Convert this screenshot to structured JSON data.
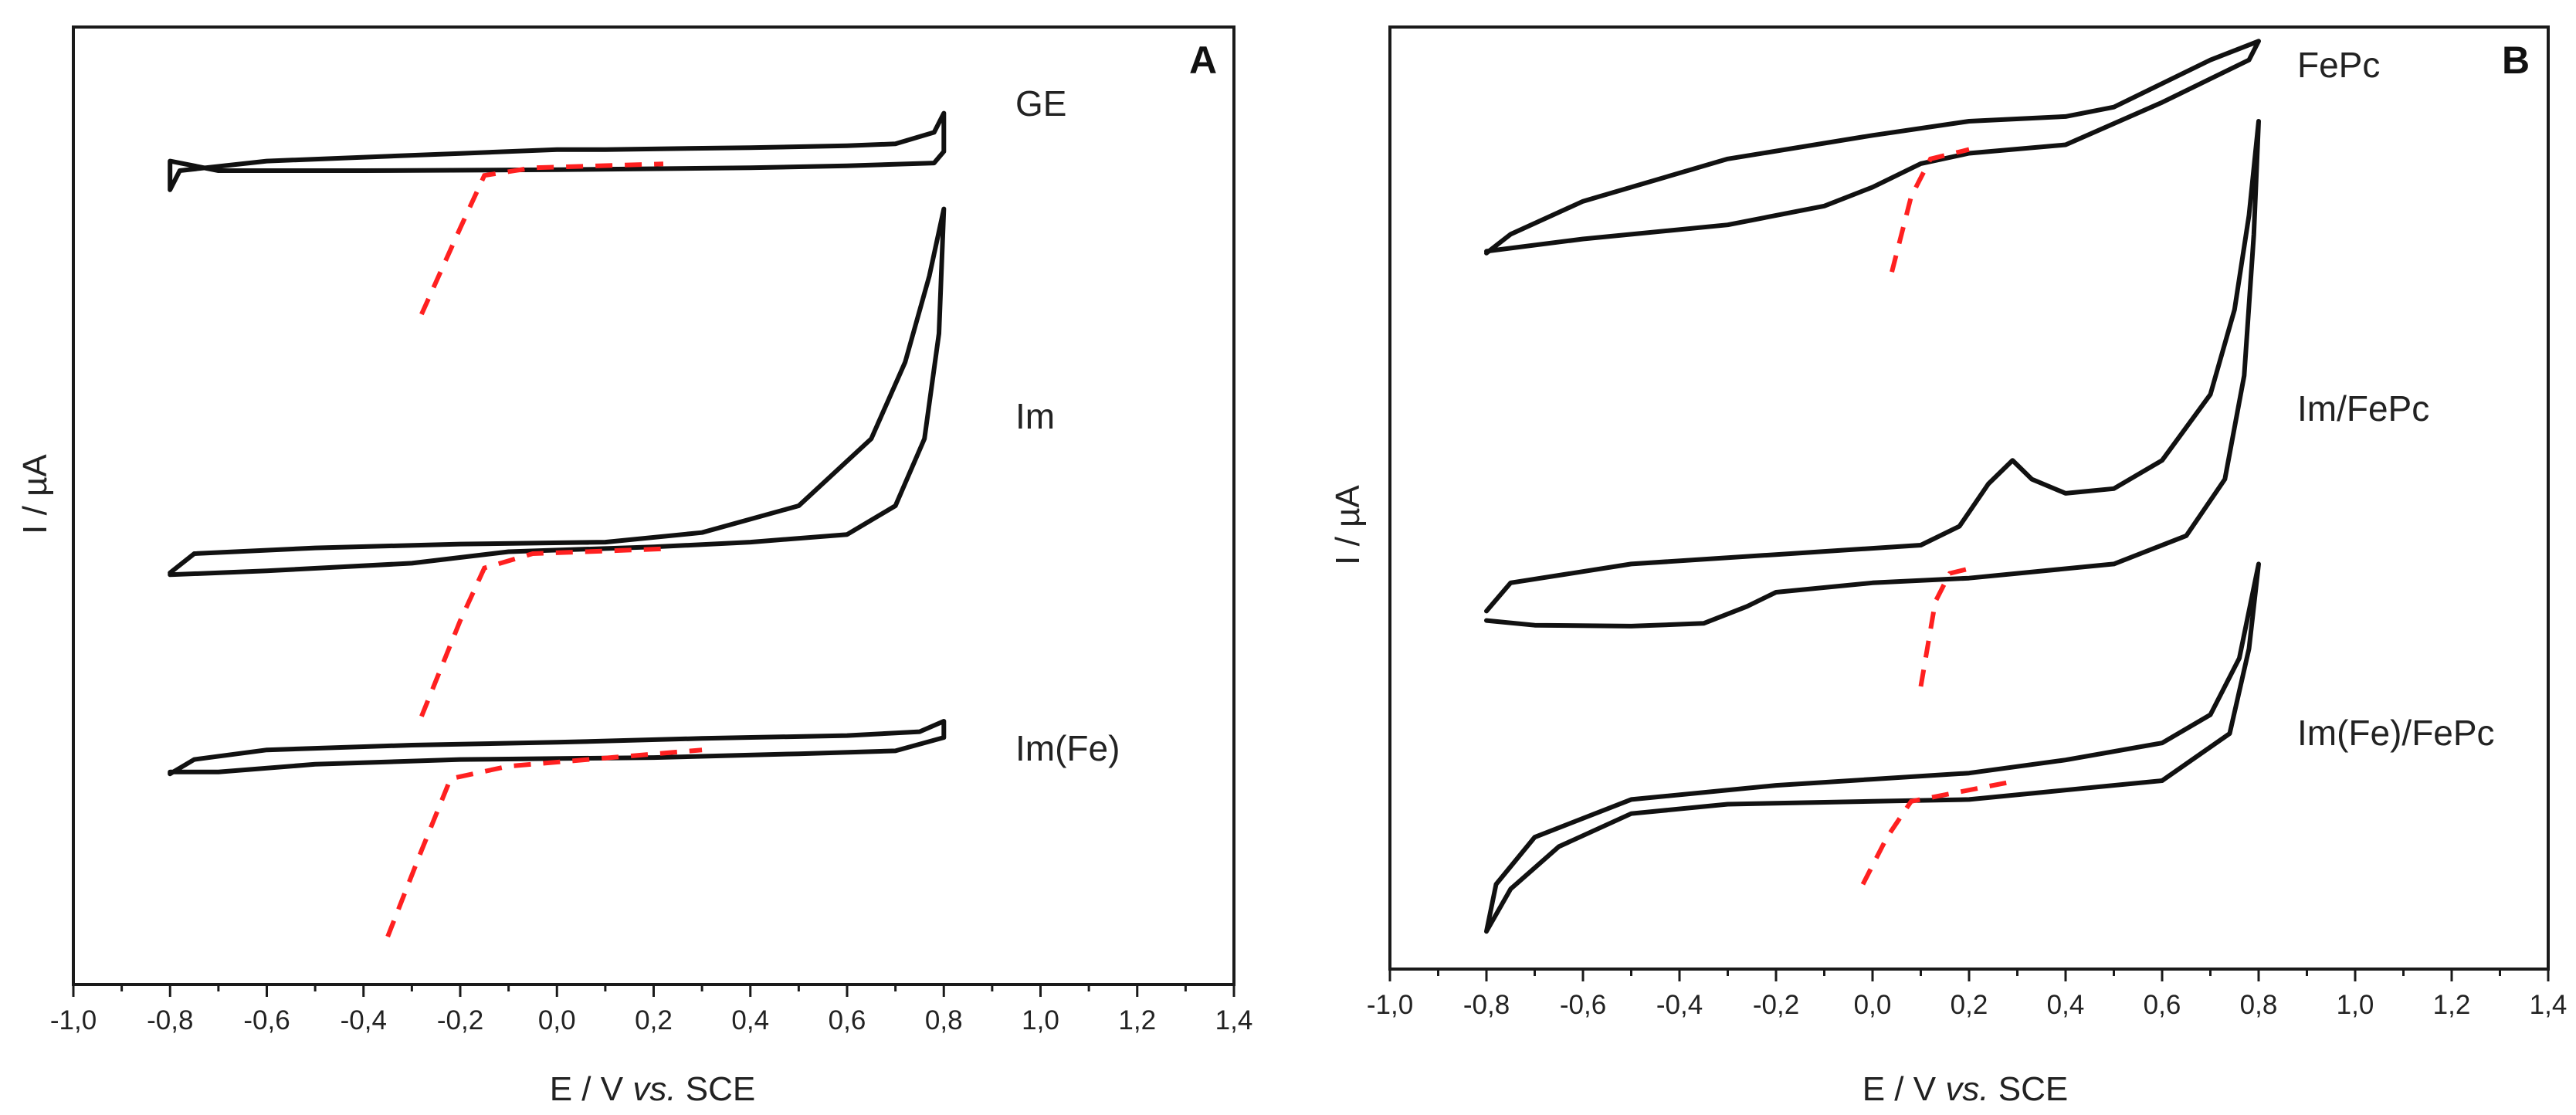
{
  "chart_data": [
    {
      "type": "line",
      "panel_label": "A",
      "xlabel": "E / V",
      "xlabel_italic": "vs.",
      "xlabel_suffix": " SCE",
      "ylabel": "I / µA",
      "xlim": [
        -1.0,
        1.4
      ],
      "xticks": [
        "-1,0",
        "-0,8",
        "-0,6",
        "-0,4",
        "-0,2",
        "0,0",
        "0,2",
        "0,4",
        "0,6",
        "0,8",
        "1,0",
        "1,2",
        "1,4"
      ],
      "y_ticks_shown": false,
      "curves": [
        {
          "label": "GE",
          "forward": [
            [
              -0.8,
              0.83
            ],
            [
              -0.78,
              0.85
            ],
            [
              -0.6,
              0.86
            ],
            [
              -0.2,
              0.868
            ],
            [
              0.0,
              0.872
            ],
            [
              0.1,
              0.872
            ],
            [
              0.4,
              0.874
            ],
            [
              0.6,
              0.876
            ],
            [
              0.7,
              0.878
            ],
            [
              0.78,
              0.89
            ],
            [
              0.8,
              0.91
            ]
          ],
          "reverse": [
            [
              0.8,
              0.91
            ],
            [
              0.8,
              0.87
            ],
            [
              0.78,
              0.858
            ],
            [
              0.6,
              0.855
            ],
            [
              0.4,
              0.853
            ],
            [
              0.0,
              0.851
            ],
            [
              -0.4,
              0.85
            ],
            [
              -0.7,
              0.85
            ],
            [
              -0.8,
              0.86
            ],
            [
              -0.8,
              0.83
            ]
          ]
        },
        {
          "label": "Im",
          "forward": [
            [
              -0.8,
              0.43
            ],
            [
              -0.75,
              0.45
            ],
            [
              -0.5,
              0.456
            ],
            [
              -0.2,
              0.46
            ],
            [
              0.1,
              0.462
            ],
            [
              0.3,
              0.472
            ],
            [
              0.5,
              0.5
            ],
            [
              0.65,
              0.57
            ],
            [
              0.72,
              0.65
            ],
            [
              0.77,
              0.74
            ],
            [
              0.8,
              0.81
            ]
          ],
          "reverse": [
            [
              0.8,
              0.81
            ],
            [
              0.79,
              0.68
            ],
            [
              0.76,
              0.57
            ],
            [
              0.7,
              0.5
            ],
            [
              0.6,
              0.47
            ],
            [
              0.4,
              0.462
            ],
            [
              0.2,
              0.457
            ],
            [
              -0.1,
              0.452
            ],
            [
              -0.3,
              0.44
            ],
            [
              -0.6,
              0.432
            ],
            [
              -0.8,
              0.428
            ]
          ]
        },
        {
          "label": "Im(Fe)",
          "forward": [
            [
              -0.8,
              0.22
            ],
            [
              -0.75,
              0.235
            ],
            [
              -0.6,
              0.245
            ],
            [
              -0.3,
              0.25
            ],
            [
              0.0,
              0.253
            ],
            [
              0.3,
              0.257
            ],
            [
              0.6,
              0.26
            ],
            [
              0.75,
              0.264
            ],
            [
              0.8,
              0.275
            ]
          ],
          "reverse": [
            [
              0.8,
              0.275
            ],
            [
              0.8,
              0.258
            ],
            [
              0.7,
              0.244
            ],
            [
              0.5,
              0.241
            ],
            [
              0.2,
              0.237
            ],
            [
              -0.2,
              0.235
            ],
            [
              -0.5,
              0.23
            ],
            [
              -0.7,
              0.222
            ],
            [
              -0.8,
              0.222
            ],
            [
              -0.8,
              0.22
            ]
          ]
        }
      ],
      "dashed_guides": [
        [
          [
            -0.28,
            0.7
          ],
          [
            -0.2,
            0.79
          ],
          [
            -0.15,
            0.845
          ],
          [
            -0.05,
            0.853
          ],
          [
            0.22,
            0.857
          ]
        ],
        [
          [
            -0.28,
            0.28
          ],
          [
            -0.2,
            0.38
          ],
          [
            -0.15,
            0.435
          ],
          [
            -0.05,
            0.45
          ],
          [
            0.22,
            0.455
          ]
        ],
        [
          [
            -0.35,
            0.05
          ],
          [
            -0.28,
            0.14
          ],
          [
            -0.22,
            0.215
          ],
          [
            -0.1,
            0.228
          ],
          [
            0.3,
            0.245
          ]
        ]
      ]
    },
    {
      "type": "line",
      "panel_label": "B",
      "xlabel": "E / V",
      "xlabel_italic": "vs.",
      "xlabel_suffix": " SCE",
      "ylabel": "I / µA",
      "xlim": [
        -1.0,
        1.4
      ],
      "xticks": [
        "-1,0",
        "-0,8",
        "-0,6",
        "-0,4",
        "-0,2",
        "0,0",
        "0,2",
        "0,4",
        "0,6",
        "0,8",
        "1,0",
        "1,2",
        "1,4"
      ],
      "y_ticks_shown": false,
      "curves": [
        {
          "label": "FePc",
          "forward": [
            [
              -0.8,
              0.76
            ],
            [
              -0.75,
              0.78
            ],
            [
              -0.6,
              0.815
            ],
            [
              -0.3,
              0.86
            ],
            [
              0.0,
              0.885
            ],
            [
              0.2,
              0.9
            ],
            [
              0.4,
              0.905
            ],
            [
              0.5,
              0.915
            ],
            [
              0.6,
              0.94
            ],
            [
              0.7,
              0.965
            ],
            [
              0.8,
              0.985
            ]
          ],
          "reverse": [
            [
              0.8,
              0.985
            ],
            [
              0.78,
              0.965
            ],
            [
              0.7,
              0.945
            ],
            [
              0.6,
              0.92
            ],
            [
              0.4,
              0.875
            ],
            [
              0.2,
              0.866
            ],
            [
              0.1,
              0.855
            ],
            [
              0.0,
              0.83
            ],
            [
              -0.1,
              0.81
            ],
            [
              -0.3,
              0.79
            ],
            [
              -0.6,
              0.775
            ],
            [
              -0.8,
              0.762
            ]
          ]
        },
        {
          "label": "Im/FePc",
          "forward": [
            [
              -0.8,
              0.38
            ],
            [
              -0.75,
              0.41
            ],
            [
              -0.5,
              0.43
            ],
            [
              -0.2,
              0.44
            ],
            [
              0.1,
              0.45
            ],
            [
              0.18,
              0.47
            ],
            [
              0.24,
              0.515
            ],
            [
              0.29,
              0.54
            ],
            [
              0.33,
              0.52
            ],
            [
              0.4,
              0.505
            ],
            [
              0.5,
              0.51
            ],
            [
              0.6,
              0.54
            ],
            [
              0.7,
              0.61
            ],
            [
              0.75,
              0.7
            ],
            [
              0.78,
              0.8
            ],
            [
              0.8,
              0.9
            ]
          ],
          "reverse": [
            [
              0.8,
              0.9
            ],
            [
              0.79,
              0.78
            ],
            [
              0.77,
              0.63
            ],
            [
              0.73,
              0.52
            ],
            [
              0.65,
              0.46
            ],
            [
              0.5,
              0.43
            ],
            [
              0.2,
              0.415
            ],
            [
              0.0,
              0.41
            ],
            [
              -0.2,
              0.4
            ],
            [
              -0.26,
              0.385
            ],
            [
              -0.35,
              0.367
            ],
            [
              -0.5,
              0.364
            ],
            [
              -0.7,
              0.365
            ],
            [
              -0.8,
              0.37
            ]
          ]
        },
        {
          "label": "Im(Fe)/FePc",
          "forward": [
            [
              -0.8,
              0.04
            ],
            [
              -0.78,
              0.09
            ],
            [
              -0.7,
              0.14
            ],
            [
              -0.5,
              0.18
            ],
            [
              -0.2,
              0.195
            ],
            [
              0.2,
              0.208
            ],
            [
              0.4,
              0.222
            ],
            [
              0.6,
              0.24
            ],
            [
              0.7,
              0.27
            ],
            [
              0.76,
              0.33
            ],
            [
              0.8,
              0.43
            ]
          ],
          "reverse": [
            [
              0.8,
              0.43
            ],
            [
              0.78,
              0.34
            ],
            [
              0.74,
              0.25
            ],
            [
              0.6,
              0.2
            ],
            [
              0.4,
              0.19
            ],
            [
              0.2,
              0.18
            ],
            [
              0.0,
              0.178
            ],
            [
              -0.3,
              0.175
            ],
            [
              -0.5,
              0.165
            ],
            [
              -0.65,
              0.13
            ],
            [
              -0.75,
              0.085
            ],
            [
              -0.8,
              0.04
            ]
          ]
        }
      ],
      "dashed_guides": [
        [
          [
            0.04,
            0.74
          ],
          [
            0.08,
            0.82
          ],
          [
            0.12,
            0.86
          ],
          [
            0.2,
            0.87
          ]
        ],
        [
          [
            0.1,
            0.3
          ],
          [
            0.13,
            0.39
          ],
          [
            0.16,
            0.42
          ],
          [
            0.2,
            0.425
          ]
        ],
        [
          [
            -0.02,
            0.09
          ],
          [
            0.03,
            0.14
          ],
          [
            0.08,
            0.178
          ],
          [
            0.3,
            0.2
          ]
        ]
      ]
    }
  ]
}
